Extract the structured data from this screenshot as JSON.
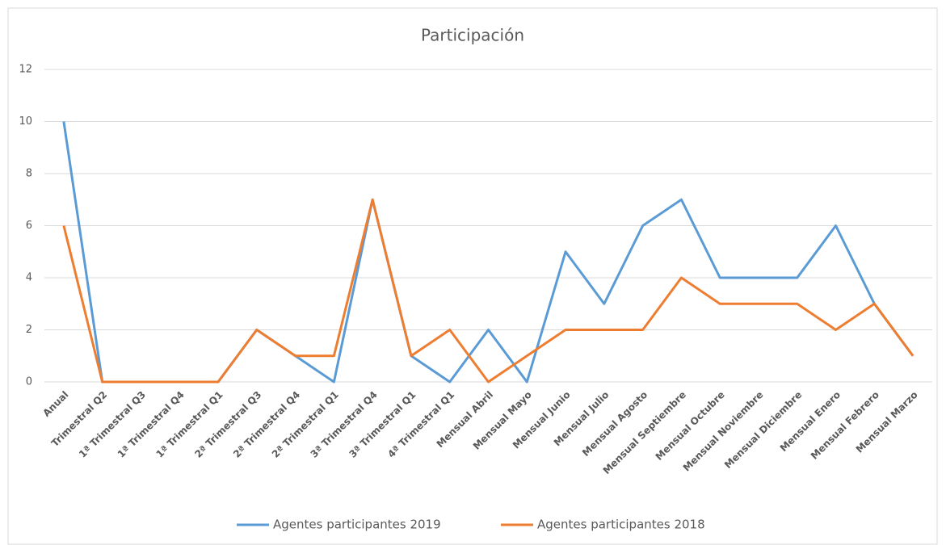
{
  "chart_data": {
    "type": "line",
    "title": "Participación",
    "categories": [
      "Anual",
      "Trimestral Q2",
      "1ª Trimestral Q3",
      "1ª Trimestral Q4",
      "1ª Trimestral Q1",
      "2ª Trimestral Q3",
      "2ª Trimestral Q4",
      "2ª Trimestral Q1",
      "3ª Trimestral Q4",
      "3ª Trimestral Q1",
      "4ª Trimestral Q1",
      "Mensual Abril",
      "Mensual Mayo",
      "Mensual Junio",
      "Mensual Julio",
      "Mensual Agosto",
      "Mensual Septiembre",
      "Mensual Octubre",
      "Mensual Noviembre",
      "Mensual Diciembre",
      "Mensual Enero",
      "Mensual Febrero",
      "Mensual Marzo"
    ],
    "series": [
      {
        "name": "Agentes participantes 2019",
        "color": "#5b9bd5",
        "values": [
          10,
          0,
          0,
          0,
          0,
          2,
          1,
          0,
          7,
          1,
          0,
          2,
          0,
          5,
          3,
          6,
          7,
          4,
          4,
          4,
          6,
          3,
          1
        ]
      },
      {
        "name": "Agentes participantes 2018",
        "color": "#ed7d31",
        "values": [
          6,
          0,
          0,
          0,
          0,
          2,
          1,
          1,
          7,
          1,
          2,
          0,
          1,
          2,
          2,
          2,
          4,
          3,
          3,
          3,
          2,
          3,
          1
        ]
      }
    ],
    "ylim": [
      0,
      12
    ],
    "yticks": [
      0,
      2,
      4,
      6,
      8,
      10,
      12
    ],
    "grid": true,
    "legend": "bottom"
  }
}
